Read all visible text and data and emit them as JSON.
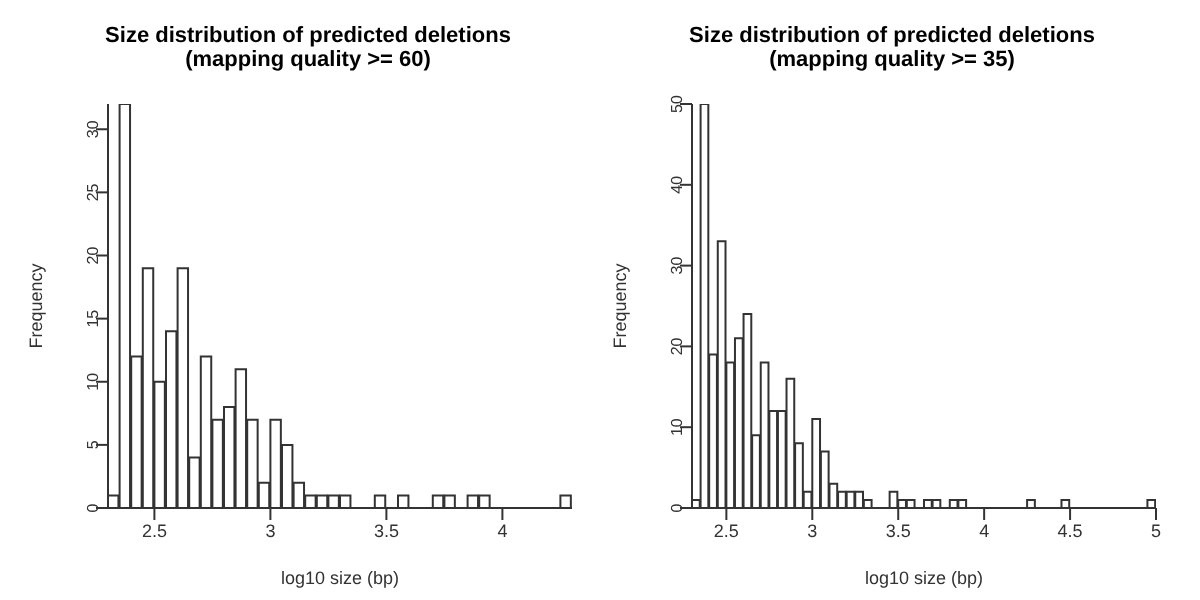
{
  "chart_data": [
    {
      "type": "histogram",
      "title": "Size distribution of predicted deletions",
      "subtitle": "(mapping quality >= 60)",
      "xlabel": "log10 size (bp)",
      "ylabel": "Frequency",
      "color": "#ffffff",
      "bins": [
        2.3,
        2.35,
        2.4,
        2.45,
        2.5,
        2.55,
        2.6,
        2.65,
        2.7,
        2.75,
        2.8,
        2.85,
        2.9,
        2.95,
        3.0,
        3.05,
        3.1,
        3.15,
        3.2,
        3.25,
        3.3,
        3.35,
        3.4,
        3.45,
        3.5,
        3.55,
        3.6,
        3.65,
        3.7,
        3.75,
        3.8,
        3.85,
        3.9,
        3.95,
        4.0,
        4.05,
        4.1,
        4.15,
        4.2,
        4.25,
        4.3
      ],
      "values": [
        1,
        32,
        12,
        19,
        10,
        14,
        19,
        4,
        12,
        7,
        8,
        11,
        7,
        2,
        7,
        5,
        2,
        1,
        1,
        1,
        1,
        0,
        0,
        1,
        0,
        1,
        0,
        0,
        1,
        1,
        0,
        1,
        1,
        0,
        0,
        0,
        0,
        0,
        0,
        1
      ],
      "xlim": [
        2.3,
        4.3
      ],
      "xticks": [
        2.5,
        3.0,
        3.5,
        4.0
      ],
      "ylim": [
        0,
        32
      ],
      "yticks": [
        0,
        5,
        10,
        15,
        20,
        25,
        30
      ],
      "grid": false,
      "legend": false
    },
    {
      "type": "histogram",
      "title": "Size distribution of predicted deletions",
      "subtitle": "(mapping quality >= 35)",
      "xlabel": "log10 size (bp)",
      "ylabel": "Frequency",
      "color": "#ffffff",
      "bins": [
        2.3,
        2.35,
        2.4,
        2.45,
        2.5,
        2.55,
        2.6,
        2.65,
        2.7,
        2.75,
        2.8,
        2.85,
        2.9,
        2.95,
        3.0,
        3.05,
        3.1,
        3.15,
        3.2,
        3.25,
        3.3,
        3.35,
        3.4,
        3.45,
        3.5,
        3.55,
        3.6,
        3.65,
        3.7,
        3.75,
        3.8,
        3.85,
        3.9,
        3.95,
        4.0,
        4.05,
        4.1,
        4.15,
        4.2,
        4.25,
        4.3,
        4.35,
        4.4,
        4.45,
        4.5,
        4.55,
        4.6,
        4.65,
        4.7,
        4.75,
        4.8,
        4.85,
        4.9,
        4.95,
        5.0
      ],
      "values": [
        1,
        50,
        19,
        33,
        18,
        21,
        24,
        9,
        18,
        12,
        12,
        16,
        8,
        2,
        11,
        7,
        3,
        2,
        2,
        2,
        1,
        0,
        0,
        2,
        1,
        1,
        0,
        1,
        1,
        0,
        1,
        1,
        0,
        0,
        0,
        0,
        0,
        0,
        0,
        1,
        0,
        0,
        0,
        1,
        0,
        0,
        0,
        0,
        0,
        0,
        0,
        0,
        0,
        1
      ],
      "xlim": [
        2.3,
        5.0
      ],
      "xticks": [
        2.5,
        3.0,
        3.5,
        4.0,
        4.5,
        5.0
      ],
      "ylim": [
        0,
        50
      ],
      "yticks": [
        0,
        10,
        20,
        30,
        40,
        50
      ],
      "grid": false,
      "legend": false
    }
  ]
}
